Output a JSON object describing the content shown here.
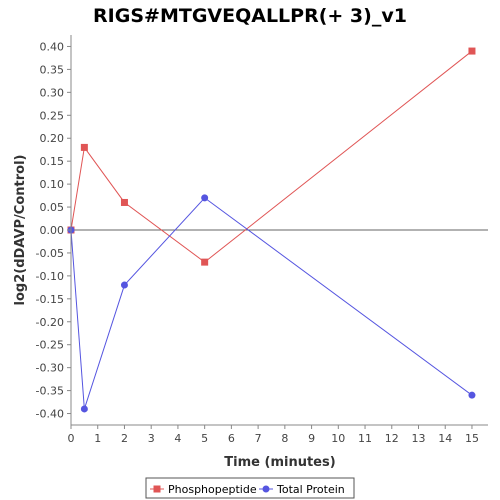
{
  "chart_data": {
    "type": "line",
    "title": "RIGS#MTGVEQALLPR(+ 3)_v1",
    "xlabel": "Time (minutes)",
    "ylabel": "log2(dDAVP/Control)",
    "xlim": [
      0,
      15.6
    ],
    "ylim": [
      -0.425,
      0.425
    ],
    "x_ticks": [
      0,
      1,
      2,
      3,
      4,
      5,
      6,
      7,
      8,
      9,
      10,
      11,
      12,
      13,
      14,
      15
    ],
    "y_ticks": [
      -0.4,
      -0.35,
      -0.3,
      -0.25,
      -0.2,
      -0.15,
      -0.1,
      -0.05,
      0.0,
      0.05,
      0.1,
      0.15,
      0.2,
      0.25,
      0.3,
      0.35,
      0.4
    ],
    "y_tick_labels": [
      "-0.40",
      "-0.35",
      "-0.30",
      "-0.25",
      "-0.20",
      "-0.15",
      "-0.10",
      "-0.05",
      "0.00",
      "0.05",
      "0.10",
      "0.15",
      "0.20",
      "0.25",
      "0.30",
      "0.35",
      "0.40"
    ],
    "grid": false,
    "zero_line": true,
    "legend_position": "bottom",
    "series": [
      {
        "name": "Phosphopeptide",
        "color": "#e05555",
        "marker": "square",
        "x": [
          0,
          0.5,
          2,
          5,
          15
        ],
        "values": [
          0.0,
          0.18,
          0.06,
          -0.07,
          0.39
        ]
      },
      {
        "name": "Total Protein",
        "color": "#5555e0",
        "marker": "circle",
        "x": [
          0,
          0.5,
          2,
          5,
          15
        ],
        "values": [
          0.0,
          -0.39,
          -0.12,
          0.07,
          -0.36
        ]
      }
    ]
  }
}
